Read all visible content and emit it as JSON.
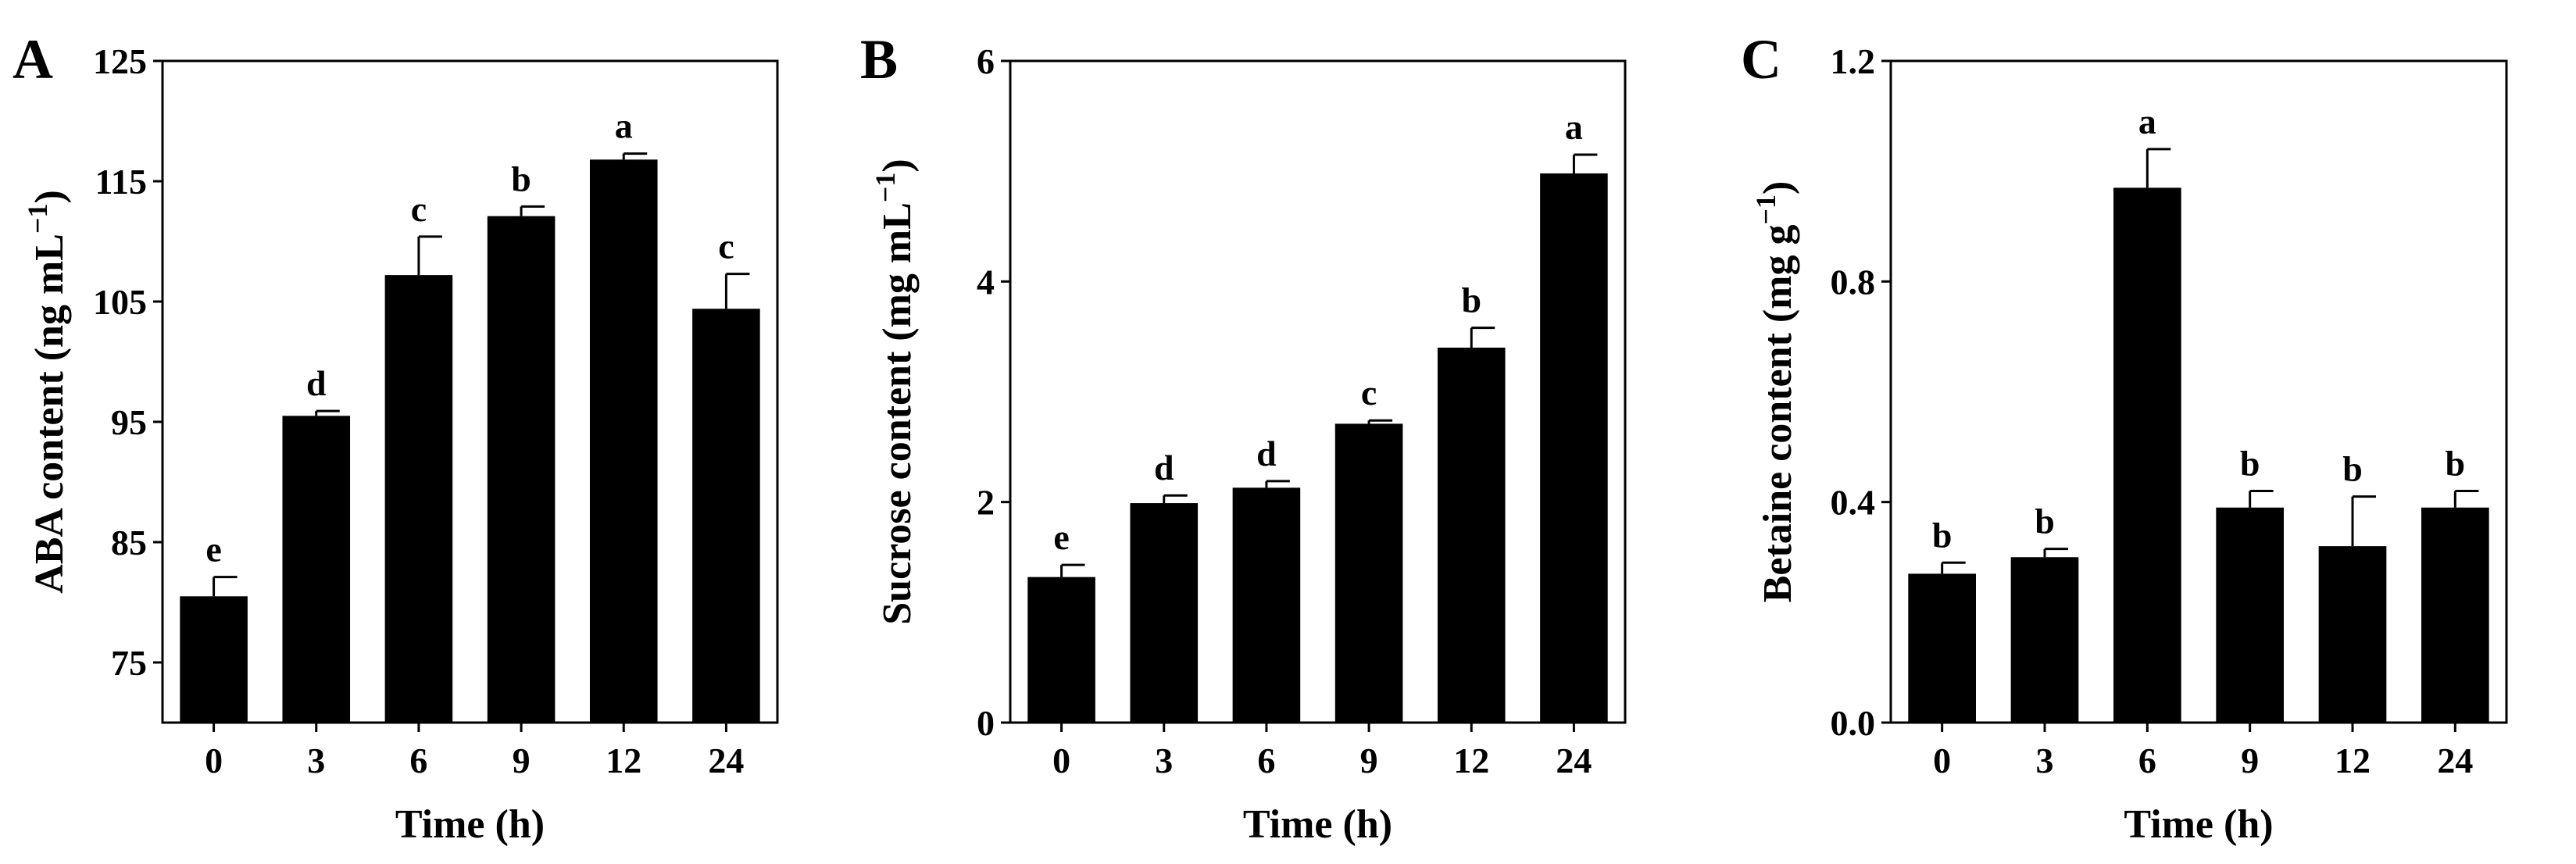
{
  "figure": {
    "bar_color": "#000000",
    "background": "#ffffff"
  },
  "chart_data": [
    {
      "panel": "A",
      "type": "bar",
      "title": "",
      "xlabel": "Time (h)",
      "ylabel": "ABA content (ng mL⁻¹)",
      "ylabel_main": "ABA content (ng mL",
      "ylabel_sup": "−1",
      "ylabel_close": ")",
      "categories": [
        "0",
        "3",
        "6",
        "9",
        "12",
        "24"
      ],
      "values": [
        80.5,
        95.5,
        107.2,
        112.1,
        116.8,
        104.4
      ],
      "errors": [
        1.6,
        0.4,
        3.2,
        0.8,
        0.5,
        2.9
      ],
      "significance": [
        "e",
        "d",
        "c",
        "b",
        "a",
        "c"
      ],
      "ylim": [
        70,
        125
      ],
      "yticks": [
        75,
        85,
        95,
        105,
        115,
        125
      ],
      "ytick_labels": [
        "75",
        "85",
        "95",
        "105",
        "115",
        "125"
      ],
      "grid": false
    },
    {
      "panel": "B",
      "type": "bar",
      "title": "",
      "xlabel": "Time (h)",
      "ylabel": "Sucrose content (mg mL⁻¹)",
      "ylabel_main": "Sucrose content (mg mL",
      "ylabel_sup": "−1",
      "ylabel_close": ")",
      "categories": [
        "0",
        "3",
        "6",
        "9",
        "12",
        "24"
      ],
      "values": [
        1.32,
        1.99,
        2.13,
        2.71,
        3.4,
        4.98
      ],
      "errors": [
        0.11,
        0.07,
        0.06,
        0.03,
        0.18,
        0.17
      ],
      "significance": [
        "e",
        "d",
        "d",
        "c",
        "b",
        "a"
      ],
      "ylim": [
        0,
        6
      ],
      "yticks": [
        0,
        2,
        4,
        6
      ],
      "ytick_labels": [
        "0",
        "2",
        "4",
        "6"
      ],
      "grid": false
    },
    {
      "panel": "C",
      "type": "bar",
      "title": "",
      "xlabel": "Time (h)",
      "ylabel": "Betaine content (mg g⁻¹)",
      "ylabel_main": "Betaine content (mg g",
      "ylabel_sup": "−1",
      "ylabel_close": ")",
      "categories": [
        "0",
        "3",
        "6",
        "9",
        "12",
        "24"
      ],
      "values": [
        0.27,
        0.3,
        0.97,
        0.39,
        0.32,
        0.39
      ],
      "errors": [
        0.02,
        0.015,
        0.07,
        0.03,
        0.09,
        0.03
      ],
      "significance": [
        "b",
        "b",
        "a",
        "b",
        "b",
        "b"
      ],
      "ylim": [
        0,
        1.2
      ],
      "yticks": [
        0,
        0.4,
        0.8,
        1.2
      ],
      "ytick_labels": [
        "0.0",
        "0.4",
        "0.8",
        "1.2"
      ],
      "grid": false
    }
  ]
}
